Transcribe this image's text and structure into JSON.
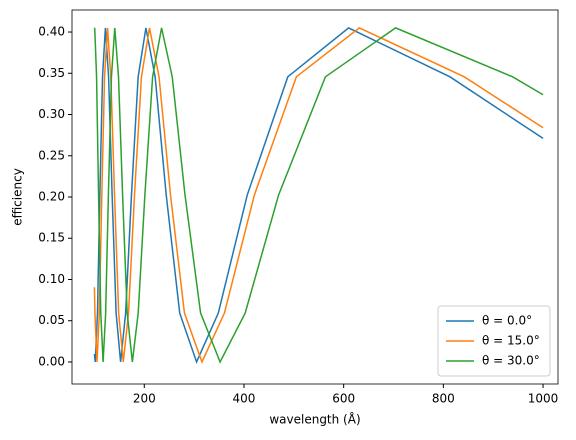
{
  "chart_data": {
    "type": "line",
    "xlabel": "wavelength (Å)",
    "ylabel": "efficiency",
    "xlim": [
      55,
      1030
    ],
    "xticks": [
      200,
      400,
      600,
      800,
      1000
    ],
    "ylim": [
      -0.0267,
      0.4267
    ],
    "yticks": [
      {
        "value": 0,
        "label": "0.00"
      },
      {
        "value": 0.05,
        "label": "0.05"
      },
      {
        "value": 0.1,
        "label": "0.10"
      },
      {
        "value": 0.15,
        "label": "0.15"
      },
      {
        "value": 0.2,
        "label": "0.20"
      },
      {
        "value": 0.25,
        "label": "0.25"
      },
      {
        "value": 0.3,
        "label": "0.30"
      },
      {
        "value": 0.35,
        "label": "0.35"
      },
      {
        "value": 0.4,
        "label": "0.40"
      }
    ],
    "legend": "lower right",
    "series": [
      {
        "name": "θ = 0.0°",
        "color": "#1f77b4",
        "x": [
          100,
          101.6,
          106.1,
          110.9,
          116.2,
          122.0,
          128.4,
          135.5,
          143.5,
          152.5,
          162.6,
          174.3,
          187.7,
          203.3,
          221.8,
          244.0,
          271.1,
          304.9,
          348.5,
          406.6,
          487.9,
          609.9,
          813.2,
          1000
        ],
        "values": [
          0.0097,
          0,
          0.0593,
          0.2025,
          0.3457,
          0.405,
          0.3457,
          0.2025,
          0.0593,
          0,
          0.0593,
          0.2025,
          0.3457,
          0.405,
          0.3457,
          0.2025,
          0.0593,
          0,
          0.0593,
          0.2025,
          0.3457,
          0.405,
          0.3457,
          0.271
        ]
      },
      {
        "name": "θ = 15.0°",
        "color": "#ff7f0e",
        "x": [
          100,
          101.0,
          105.2,
          109.8,
          114.8,
          120.3,
          126.3,
          132.9,
          140.3,
          148.6,
          157.9,
          168.4,
          180.4,
          194.3,
          210.5,
          229.6,
          252.6,
          280.6,
          315.7,
          360.8,
          420.9,
          505.1,
          631.4,
          841.9,
          1000
        ],
        "values": [
          0.0906,
          0.0593,
          0,
          0.0593,
          0.2025,
          0.3457,
          0.405,
          0.3457,
          0.2025,
          0.0593,
          0,
          0.0593,
          0.2025,
          0.3457,
          0.405,
          0.3457,
          0.2025,
          0.0593,
          0,
          0.0593,
          0.2025,
          0.3457,
          0.405,
          0.3457,
          0.284
        ]
      },
      {
        "name": "θ = 30.0°",
        "color": "#2ca02c",
        "x": [
          100,
          100.6,
          104.3,
          108.3,
          112.7,
          117.4,
          122.5,
          128.0,
          134.1,
          140.8,
          148.3,
          156.5,
          165.7,
          176.1,
          187.8,
          201.2,
          216.7,
          234.7,
          256.1,
          281.7,
          313.0,
          352.1,
          402.4,
          469.5,
          563.4,
          704.2,
          939.0,
          1000
        ],
        "values": [
          0.404,
          0.405,
          0.3457,
          0.2025,
          0.0593,
          0,
          0.0593,
          0.2025,
          0.3457,
          0.405,
          0.3457,
          0.2025,
          0.0593,
          0,
          0.0593,
          0.2025,
          0.3457,
          0.405,
          0.3457,
          0.2025,
          0.0593,
          0,
          0.0593,
          0.2025,
          0.3457,
          0.405,
          0.3457,
          0.324
        ]
      }
    ]
  }
}
